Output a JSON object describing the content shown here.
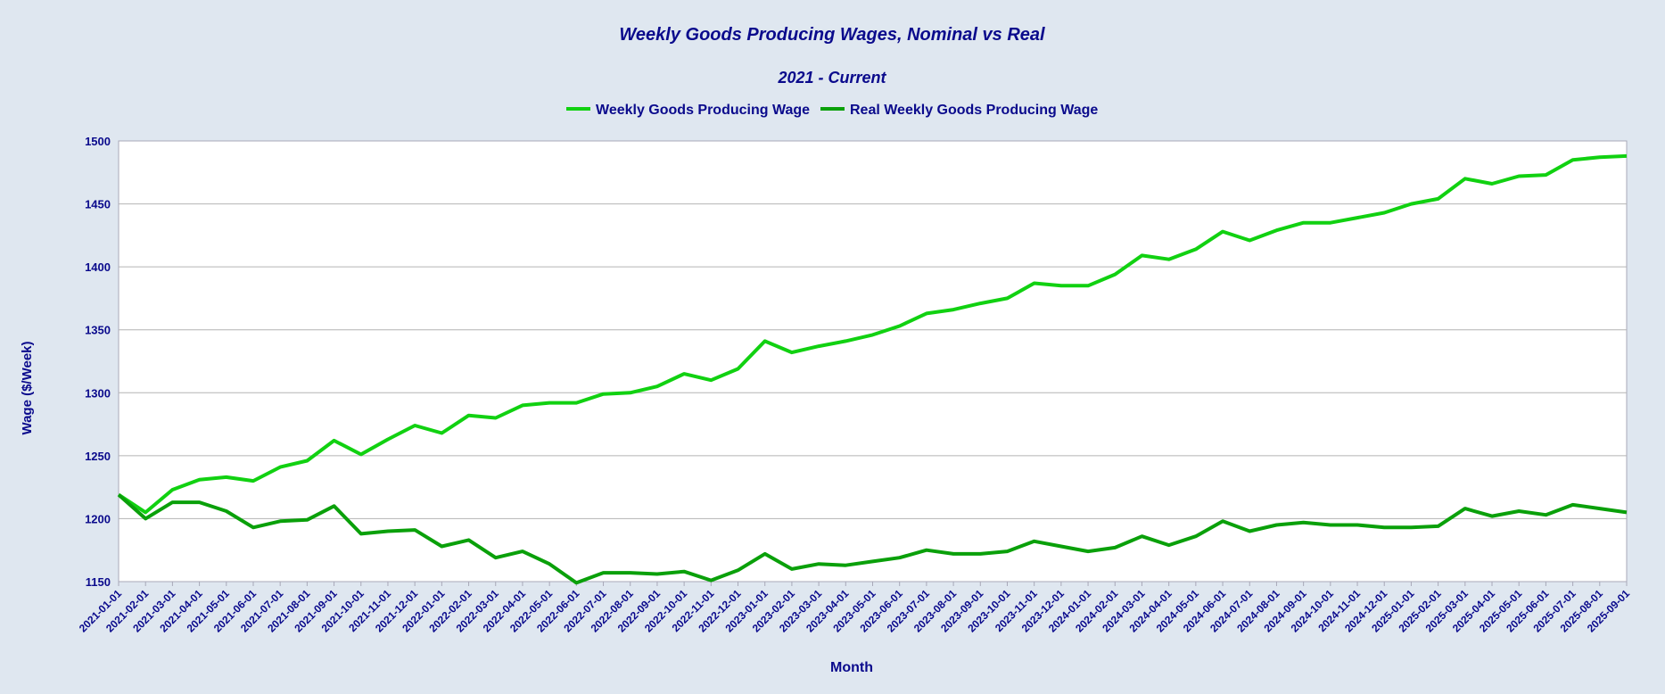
{
  "chart_data": {
    "type": "line",
    "title": "Weekly Goods Producing Wages, Nominal vs Real",
    "subtitle": "2021 - Current",
    "xlabel": "Month",
    "ylabel": "Wage ($/Week)",
    "ylim": [
      1150,
      1500
    ],
    "yticks": [
      1150,
      1200,
      1250,
      1300,
      1350,
      1400,
      1450,
      1500
    ],
    "grid": "horizontal",
    "legend_position": "top-center",
    "categories": [
      "2021-01-01",
      "2021-02-01",
      "2021-03-01",
      "2021-04-01",
      "2021-05-01",
      "2021-06-01",
      "2021-07-01",
      "2021-08-01",
      "2021-09-01",
      "2021-10-01",
      "2021-11-01",
      "2021-12-01",
      "2022-01-01",
      "2022-02-01",
      "2022-03-01",
      "2022-04-01",
      "2022-05-01",
      "2022-06-01",
      "2022-07-01",
      "2022-08-01",
      "2022-09-01",
      "2022-10-01",
      "2022-11-01",
      "2022-12-01",
      "2023-01-01",
      "2023-02-01",
      "2023-03-01",
      "2023-04-01",
      "2023-05-01",
      "2023-06-01",
      "2023-07-01",
      "2023-08-01",
      "2023-09-01",
      "2023-10-01",
      "2023-11-01",
      "2023-12-01",
      "2024-01-01",
      "2024-02-01",
      "2024-03-01",
      "2024-04-01",
      "2024-05-01",
      "2024-06-01",
      "2024-07-01",
      "2024-08-01",
      "2024-09-01",
      "2024-10-01",
      "2024-11-01",
      "2024-12-01",
      "2025-01-01",
      "2025-02-01",
      "2025-03-01",
      "2025-04-01",
      "2025-05-01",
      "2025-06-01",
      "2025-07-01",
      "2025-08-01",
      "2025-09-01"
    ],
    "series": [
      {
        "name": "Weekly Goods Producing Wage",
        "color": "#11d111",
        "values": [
          1219,
          1205,
          1223,
          1231,
          1233,
          1230,
          1241,
          1246,
          1262,
          1251,
          1263,
          1274,
          1268,
          1282,
          1280,
          1290,
          1292,
          1292,
          1299,
          1300,
          1305,
          1315,
          1310,
          1319,
          1341,
          1332,
          1337,
          1341,
          1346,
          1353,
          1363,
          1366,
          1371,
          1375,
          1387,
          1385,
          1385,
          1394,
          1409,
          1406,
          1414,
          1428,
          1421,
          1429,
          1435,
          1435,
          1439,
          1443,
          1450,
          1454,
          1470,
          1466,
          1472,
          1473,
          1485,
          1487,
          1488
        ]
      },
      {
        "name": "Real Weekly Goods Producing Wage",
        "color": "#0aa00a",
        "values": [
          1219,
          1200,
          1213,
          1213,
          1206,
          1193,
          1198,
          1199,
          1210,
          1188,
          1190,
          1191,
          1178,
          1183,
          1169,
          1174,
          1164,
          1149,
          1157,
          1157,
          1156,
          1158,
          1151,
          1159,
          1172,
          1160,
          1164,
          1163,
          1166,
          1169,
          1175,
          1172,
          1172,
          1174,
          1182,
          1178,
          1174,
          1177,
          1186,
          1179,
          1186,
          1198,
          1190,
          1195,
          1197,
          1195,
          1195,
          1193,
          1193,
          1194,
          1208,
          1202,
          1206,
          1203,
          1211,
          1208,
          1205
        ]
      }
    ]
  }
}
